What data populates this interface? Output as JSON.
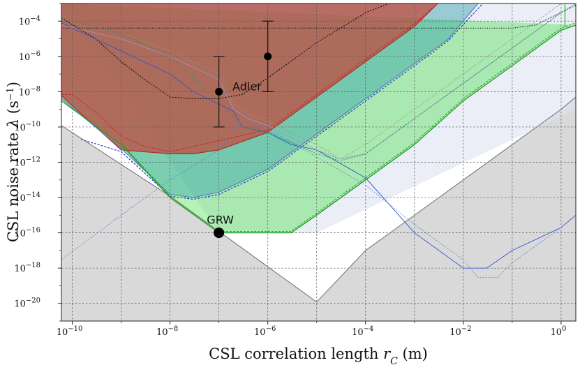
{
  "chart_data": {
    "type": "area",
    "xlabel": "CSL correlation length r_C (m)",
    "ylabel": "CSL noise rate λ (s⁻¹)",
    "xscale": "log",
    "yscale": "log",
    "xlim": [
      6e-11,
      2
    ],
    "ylim": [
      1e-21,
      0.001
    ],
    "grid": true,
    "x_tick_labels": [
      {
        "v": 1e-10,
        "label": "10",
        "exp": "−10"
      },
      {
        "v": 1e-08,
        "label": "10",
        "exp": "−8"
      },
      {
        "v": 1e-06,
        "label": "10",
        "exp": "−6"
      },
      {
        "v": 0.0001,
        "label": "10",
        "exp": "−4"
      },
      {
        "v": 0.01,
        "label": "10",
        "exp": "−2"
      },
      {
        "v": 1,
        "label": "10",
        "exp": "0"
      }
    ],
    "y_tick_labels": [
      {
        "v": 0.0001,
        "label": "10",
        "exp": "−4"
      },
      {
        "v": 1e-06,
        "label": "10",
        "exp": "−6"
      },
      {
        "v": 1e-08,
        "label": "10",
        "exp": "−8"
      },
      {
        "v": 1e-10,
        "label": "10",
        "exp": "−10"
      },
      {
        "v": 1e-12,
        "label": "10",
        "exp": "−12"
      },
      {
        "v": 1e-14,
        "label": "10",
        "exp": "−14"
      },
      {
        "v": 1e-16,
        "label": "10",
        "exp": "−16"
      },
      {
        "v": 1e-18,
        "label": "10",
        "exp": "−18"
      },
      {
        "v": 1e-20,
        "label": "10",
        "exp": "−20"
      }
    ],
    "regions": [
      {
        "name": "theory-lower-bound",
        "color": "#aaaaaa",
        "opacity": 0.45,
        "boundary": [
          [
            6e-11,
            1.2e-10
          ],
          [
            1e-08,
            1.2e-14
          ],
          [
            1e-07,
            1.2e-16
          ],
          [
            1e-06,
            1.2e-18
          ],
          [
            1e-05,
            1.2e-20
          ],
          [
            0.0001,
            1e-17
          ],
          [
            0.01,
            1e-13
          ],
          [
            1,
            1e-09
          ],
          [
            2,
            5e-09
          ]
        ]
      },
      {
        "name": "excluded-light-blue",
        "color": "#dde3f2",
        "opacity": 0.6,
        "boundary": [
          [
            6e-11,
            0.001
          ],
          [
            0.0001,
            0.001
          ],
          [
            0.1,
            0.001
          ],
          [
            2,
            1e-09
          ]
        ]
      },
      {
        "name": "excluded-green",
        "color": "#3ee03e",
        "opacity": 0.38,
        "boundary": [
          [
            6e-11,
            3e-09
          ],
          [
            1e-09,
            1e-11
          ],
          [
            1e-08,
            1e-14
          ],
          [
            1e-07,
            1e-16
          ],
          [
            3e-06,
            1e-16
          ],
          [
            1e-05,
            1e-15
          ],
          [
            0.0001,
            1e-13
          ],
          [
            0.001,
            1e-11
          ],
          [
            0.01,
            3e-09
          ],
          [
            0.1,
            3e-07
          ],
          [
            1,
            3e-05
          ],
          [
            2,
            6e-05
          ]
        ]
      },
      {
        "name": "excluded-teal",
        "color": "#2a9aa6",
        "opacity": 0.42,
        "boundary": [
          [
            6e-11,
            4e-09
          ],
          [
            1e-09,
            6e-12
          ],
          [
            1e-08,
            1.5e-14
          ],
          [
            3e-08,
            1e-14
          ],
          [
            1e-07,
            2e-14
          ],
          [
            1e-06,
            4e-13
          ],
          [
            1e-05,
            4e-11
          ],
          [
            0.0001,
            4e-09
          ],
          [
            0.001,
            4e-07
          ],
          [
            0.005,
            1e-05
          ],
          [
            0.02,
            0.001
          ]
        ]
      },
      {
        "name": "excluded-red",
        "color": "#c4463c",
        "opacity": 0.72,
        "boundary": [
          [
            6e-11,
            6e-09
          ],
          [
            3e-10,
            1e-10
          ],
          [
            1e-09,
            5e-12
          ],
          [
            1e-08,
            3e-12
          ],
          [
            3e-08,
            3e-12
          ],
          [
            1e-07,
            5e-12
          ],
          [
            1e-06,
            5e-11
          ],
          [
            1e-05,
            5e-09
          ],
          [
            0.0001,
            5e-07
          ],
          [
            0.001,
            5e-05
          ],
          [
            0.003,
            0.001
          ]
        ]
      }
    ],
    "series": [
      {
        "color": "#111111",
        "dash": "2,2",
        "width": 1.1,
        "values": [
          [
            6e-11,
            0.00015
          ],
          [
            3e-10,
            1e-05
          ],
          [
            1e-09,
            5e-07
          ],
          [
            3e-09,
            5e-08
          ],
          [
            1e-08,
            5e-09
          ],
          [
            3e-08,
            4e-09
          ],
          [
            1e-07,
            4e-09
          ],
          [
            3e-07,
            7e-09
          ],
          [
            1e-06,
            6e-08
          ],
          [
            1e-05,
            6e-06
          ],
          [
            0.0001,
            0.0003
          ],
          [
            0.0003,
            0.001
          ]
        ]
      },
      {
        "color": "#111111",
        "dash": "1,1.5",
        "width": 1.2,
        "values": [
          [
            6e-11,
            4e-05
          ],
          [
            1e-08,
            4e-05
          ],
          [
            0.0001,
            4e-05
          ],
          [
            0.1,
            4e-05
          ],
          [
            0.3,
            6e-05
          ],
          [
            2,
            0.0008
          ]
        ]
      },
      {
        "color": "#b02a2a",
        "dash": "",
        "width": 1.2,
        "values": [
          [
            6e-11,
            6e-09
          ],
          [
            3e-10,
            1e-10
          ],
          [
            1e-09,
            5e-12
          ],
          [
            1e-08,
            3e-12
          ],
          [
            3e-08,
            3e-12
          ],
          [
            1e-07,
            5e-12
          ],
          [
            1e-06,
            5e-11
          ],
          [
            1e-05,
            5e-09
          ],
          [
            0.0001,
            5e-07
          ],
          [
            0.001,
            5e-05
          ],
          [
            0.003,
            0.001
          ]
        ]
      },
      {
        "color": "#c22a2a",
        "dash": "3,2",
        "width": 1.1,
        "values": [
          [
            6e-11,
            7e-09
          ],
          [
            1e-10,
            7e-09
          ],
          [
            3e-10,
            7e-10
          ],
          [
            1e-09,
            3e-11
          ],
          [
            3e-09,
            8e-12
          ],
          [
            1e-08,
            4e-12
          ],
          [
            1e-06,
            7e-11
          ],
          [
            1e-05,
            7e-09
          ],
          [
            0.0001,
            7e-07
          ],
          [
            0.001,
            7e-05
          ],
          [
            0.003,
            0.001
          ]
        ]
      },
      {
        "color": "#5577bb",
        "dash": "",
        "width": 1.1,
        "values": [
          [
            6e-11,
            4e-09
          ],
          [
            1e-09,
            6e-12
          ],
          [
            1e-08,
            1.5e-14
          ],
          [
            3e-08,
            1e-14
          ],
          [
            1e-07,
            2e-14
          ],
          [
            1e-06,
            4e-13
          ],
          [
            1e-05,
            4e-11
          ],
          [
            0.0001,
            4e-09
          ],
          [
            0.001,
            4e-07
          ],
          [
            0.005,
            1e-05
          ],
          [
            0.02,
            0.001
          ]
        ]
      },
      {
        "color": "#2040c0",
        "dash": "3,2",
        "width": 1.2,
        "values": [
          [
            1.5e-10,
            2e-11
          ],
          [
            1e-09,
            4e-12
          ],
          [
            1e-08,
            1.2e-14
          ],
          [
            3e-08,
            8e-15
          ],
          [
            1e-07,
            1.5e-14
          ],
          [
            1e-06,
            3e-13
          ],
          [
            1e-05,
            3e-11
          ],
          [
            0.0001,
            3e-09
          ],
          [
            0.001,
            3e-07
          ],
          [
            0.005,
            8e-06
          ],
          [
            0.025,
            0.001
          ]
        ]
      },
      {
        "color": "#22a022",
        "dash": "",
        "width": 1.3,
        "values": [
          [
            6e-11,
            3e-09
          ],
          [
            1e-09,
            1e-11
          ],
          [
            1e-08,
            1e-14
          ],
          [
            1e-07,
            1e-16
          ],
          [
            3e-06,
            1e-16
          ],
          [
            1e-05,
            1e-15
          ],
          [
            0.0001,
            1e-13
          ],
          [
            0.001,
            1e-11
          ],
          [
            0.01,
            3e-09
          ],
          [
            0.1,
            3e-07
          ],
          [
            1,
            3e-05
          ],
          [
            2,
            6e-05
          ]
        ]
      },
      {
        "color": "#22a022",
        "dash": "3,2",
        "width": 1.1,
        "values": [
          [
            1e-09,
            1.2e-11
          ],
          [
            1e-08,
            1.2e-14
          ],
          [
            1e-07,
            1.2e-16
          ],
          [
            3e-06,
            1.2e-16
          ],
          [
            1e-05,
            1.3e-15
          ],
          [
            0.0001,
            1.3e-13
          ],
          [
            0.001,
            1.3e-11
          ],
          [
            0.01,
            4e-09
          ],
          [
            0.1,
            4e-07
          ],
          [
            1,
            4e-05
          ],
          [
            2,
            8e-05
          ]
        ]
      },
      {
        "color": "#3355cc",
        "dash": "",
        "width": 0.9,
        "values": [
          [
            6e-11,
            8e-05
          ],
          [
            1e-09,
            2e-06
          ],
          [
            1e-08,
            1e-07
          ],
          [
            3e-08,
            1e-08
          ],
          [
            1e-07,
            2e-09
          ],
          [
            2e-07,
            8e-10
          ],
          [
            3e-07,
            1e-10
          ],
          [
            1e-06,
            5e-11
          ],
          [
            3e-06,
            1e-11
          ],
          [
            1e-05,
            5e-12
          ],
          [
            0.0001,
            1.3e-13
          ],
          [
            0.001,
            1e-16
          ],
          [
            0.01,
            1e-18
          ],
          [
            0.03,
            1e-18
          ],
          [
            0.1,
            1e-17
          ],
          [
            1,
            2e-16
          ],
          [
            2,
            1e-15
          ]
        ]
      },
      {
        "color": "#6688cc",
        "dash": "2,2",
        "width": 0.9,
        "values": [
          [
            6e-11,
            3e-18
          ],
          [
            1e-09,
            1e-15
          ],
          [
            1e-08,
            1e-13
          ],
          [
            1e-07,
            5e-12
          ],
          [
            3e-07,
            3e-10
          ],
          [
            1e-06,
            8e-11
          ],
          [
            1e-05,
            2e-12
          ],
          [
            0.0001,
            5e-14
          ],
          [
            0.001,
            3e-16
          ],
          [
            0.01,
            3e-18
          ],
          [
            0.02,
            3e-19
          ],
          [
            0.05,
            3e-19
          ],
          [
            0.1,
            2e-18
          ],
          [
            1,
            2e-16
          ],
          [
            2,
            1e-15
          ]
        ]
      },
      {
        "color": "#9999cc",
        "dash": "",
        "width": 0.8,
        "values": [
          [
            6e-11,
            6e-05
          ],
          [
            1e-09,
            1e-05
          ],
          [
            1e-08,
            1e-06
          ],
          [
            1e-07,
            5e-08
          ],
          [
            2e-07,
            1e-09
          ],
          [
            4e-07,
            3e-10
          ],
          [
            1e-06,
            1.2e-10
          ],
          [
            1e-05,
            5e-12
          ],
          [
            3e-05,
            1.5e-12
          ],
          [
            0.0001,
            3e-12
          ],
          [
            0.001,
            3e-10
          ],
          [
            0.01,
            3e-08
          ],
          [
            0.1,
            3e-06
          ],
          [
            1,
            0.0003
          ]
        ]
      },
      {
        "color": "#999977",
        "dash": "2,2",
        "width": 0.9,
        "values": [
          [
            6e-11,
            0.00015
          ],
          [
            1e-09,
            2e-05
          ],
          [
            1e-08,
            2e-06
          ],
          [
            1e-07,
            1e-07
          ],
          [
            2e-07,
            2e-09
          ],
          [
            4e-07,
            5e-10
          ],
          [
            1e-06,
            2e-10
          ],
          [
            1e-05,
            1e-11
          ],
          [
            3e-05,
            1.5e-12
          ],
          [
            0.0001,
            1e-11
          ],
          [
            0.001,
            1e-09
          ],
          [
            0.01,
            1e-07
          ],
          [
            0.1,
            1e-05
          ],
          [
            1,
            0.001
          ]
        ]
      },
      {
        "color": "#2a8a6a",
        "dash": "2,2",
        "width": 0.9,
        "values": [
          [
            6e-11,
            0.00015
          ],
          [
            1e-09,
            2e-05
          ],
          [
            1e-08,
            1e-06
          ],
          [
            1e-07,
            3e-09
          ],
          [
            3e-07,
            1e-10
          ],
          [
            1e-06,
            5e-11
          ],
          [
            1e-05,
            3e-12
          ],
          [
            3e-05,
            1.2e-12
          ],
          [
            0.0001,
            3e-12
          ],
          [
            0.001,
            3e-10
          ],
          [
            0.01,
            3e-08
          ],
          [
            0.1,
            3e-06
          ],
          [
            1,
            0.0003
          ],
          [
            2,
            0.001
          ]
        ]
      },
      {
        "color": "#22bb22",
        "dash": "",
        "width": 1.2,
        "values": [
          [
            1.2,
            0.001
          ],
          [
            1.2,
            5e-05
          ]
        ]
      }
    ],
    "points": [
      {
        "label": "",
        "x": 1e-07,
        "y": 1e-08,
        "err_low": 1e-10,
        "err_high": 1e-06
      },
      {
        "label": "",
        "x": 1e-06,
        "y": 1e-06,
        "err_low": 1e-08,
        "err_high": 0.0001
      },
      {
        "label": "GRW",
        "x": 1e-07,
        "y": 1e-16
      }
    ],
    "annotations": [
      {
        "text": "Adler",
        "x": 3e-07,
        "y": 1e-08
      },
      {
        "text": "GRW",
        "x": 1e-07,
        "y": 1e-16
      }
    ]
  }
}
